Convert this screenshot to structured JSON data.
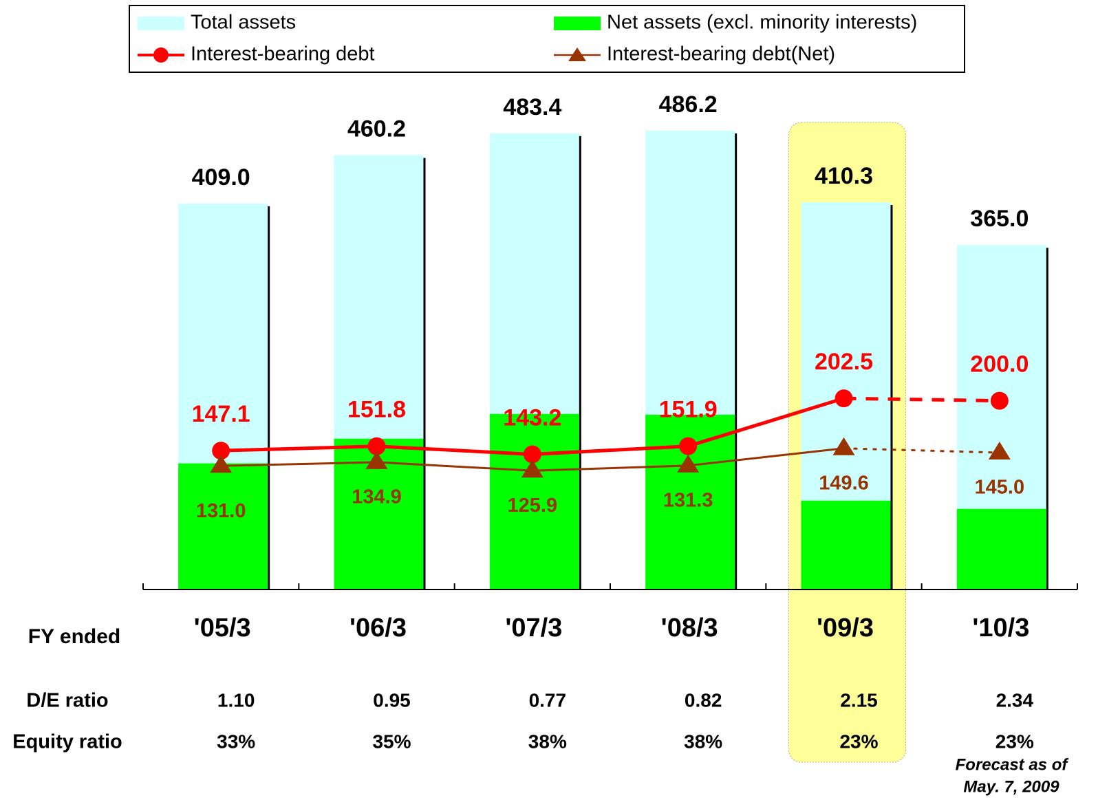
{
  "chart_data": {
    "type": "bar",
    "categories": [
      "'05/3",
      "'06/3",
      "'07/3",
      "'08/3",
      "'09/3",
      "'10/3"
    ],
    "category_title": "FY ended",
    "ylim": [
      0,
      500
    ],
    "highlight_index": 4,
    "series": [
      {
        "name": "Total assets",
        "type": "bar",
        "color": "#ccffff",
        "values": [
          409.0,
          460.2,
          483.4,
          486.2,
          410.3,
          365.0
        ],
        "value_labels": [
          "409.0",
          "460.2",
          "483.4",
          "486.2",
          "410.3",
          "365.0"
        ],
        "label_color": "#000000"
      },
      {
        "name": "Net assets (excl. minority interests)",
        "type": "bar",
        "color": "#00ff00",
        "values": [
          133.7,
          159.8,
          186.0,
          185.2,
          94.2,
          85.5
        ]
      },
      {
        "name": "Interest-bearing debt",
        "type": "line",
        "marker": "circle",
        "color": "#ff0000",
        "values": [
          147.1,
          151.8,
          143.2,
          151.9,
          202.5,
          200.0
        ],
        "value_labels": [
          "147.1",
          "151.8",
          "143.2",
          "151.9",
          "202.5",
          "200.0"
        ],
        "label_color": "#ff0000"
      },
      {
        "name": "Interest-bearing debt(Net)",
        "type": "line",
        "marker": "triangle",
        "color": "#993300",
        "values": [
          131.0,
          134.9,
          125.9,
          131.3,
          149.6,
          145.0
        ],
        "value_labels": [
          "131.0",
          "134.9",
          "125.9",
          "131.3",
          "149.6",
          "145.0"
        ],
        "label_color": "#993300"
      }
    ],
    "rows": [
      {
        "label": "D/E ratio",
        "values": [
          "1.10",
          "0.95",
          "0.77",
          "0.82",
          "2.15",
          "2.34"
        ]
      },
      {
        "label": "Equity ratio",
        "values": [
          "33%",
          "35%",
          "38%",
          "38%",
          "23%",
          "23%"
        ]
      }
    ],
    "note": [
      "Forecast as of",
      "May. 7, 2009"
    ]
  }
}
